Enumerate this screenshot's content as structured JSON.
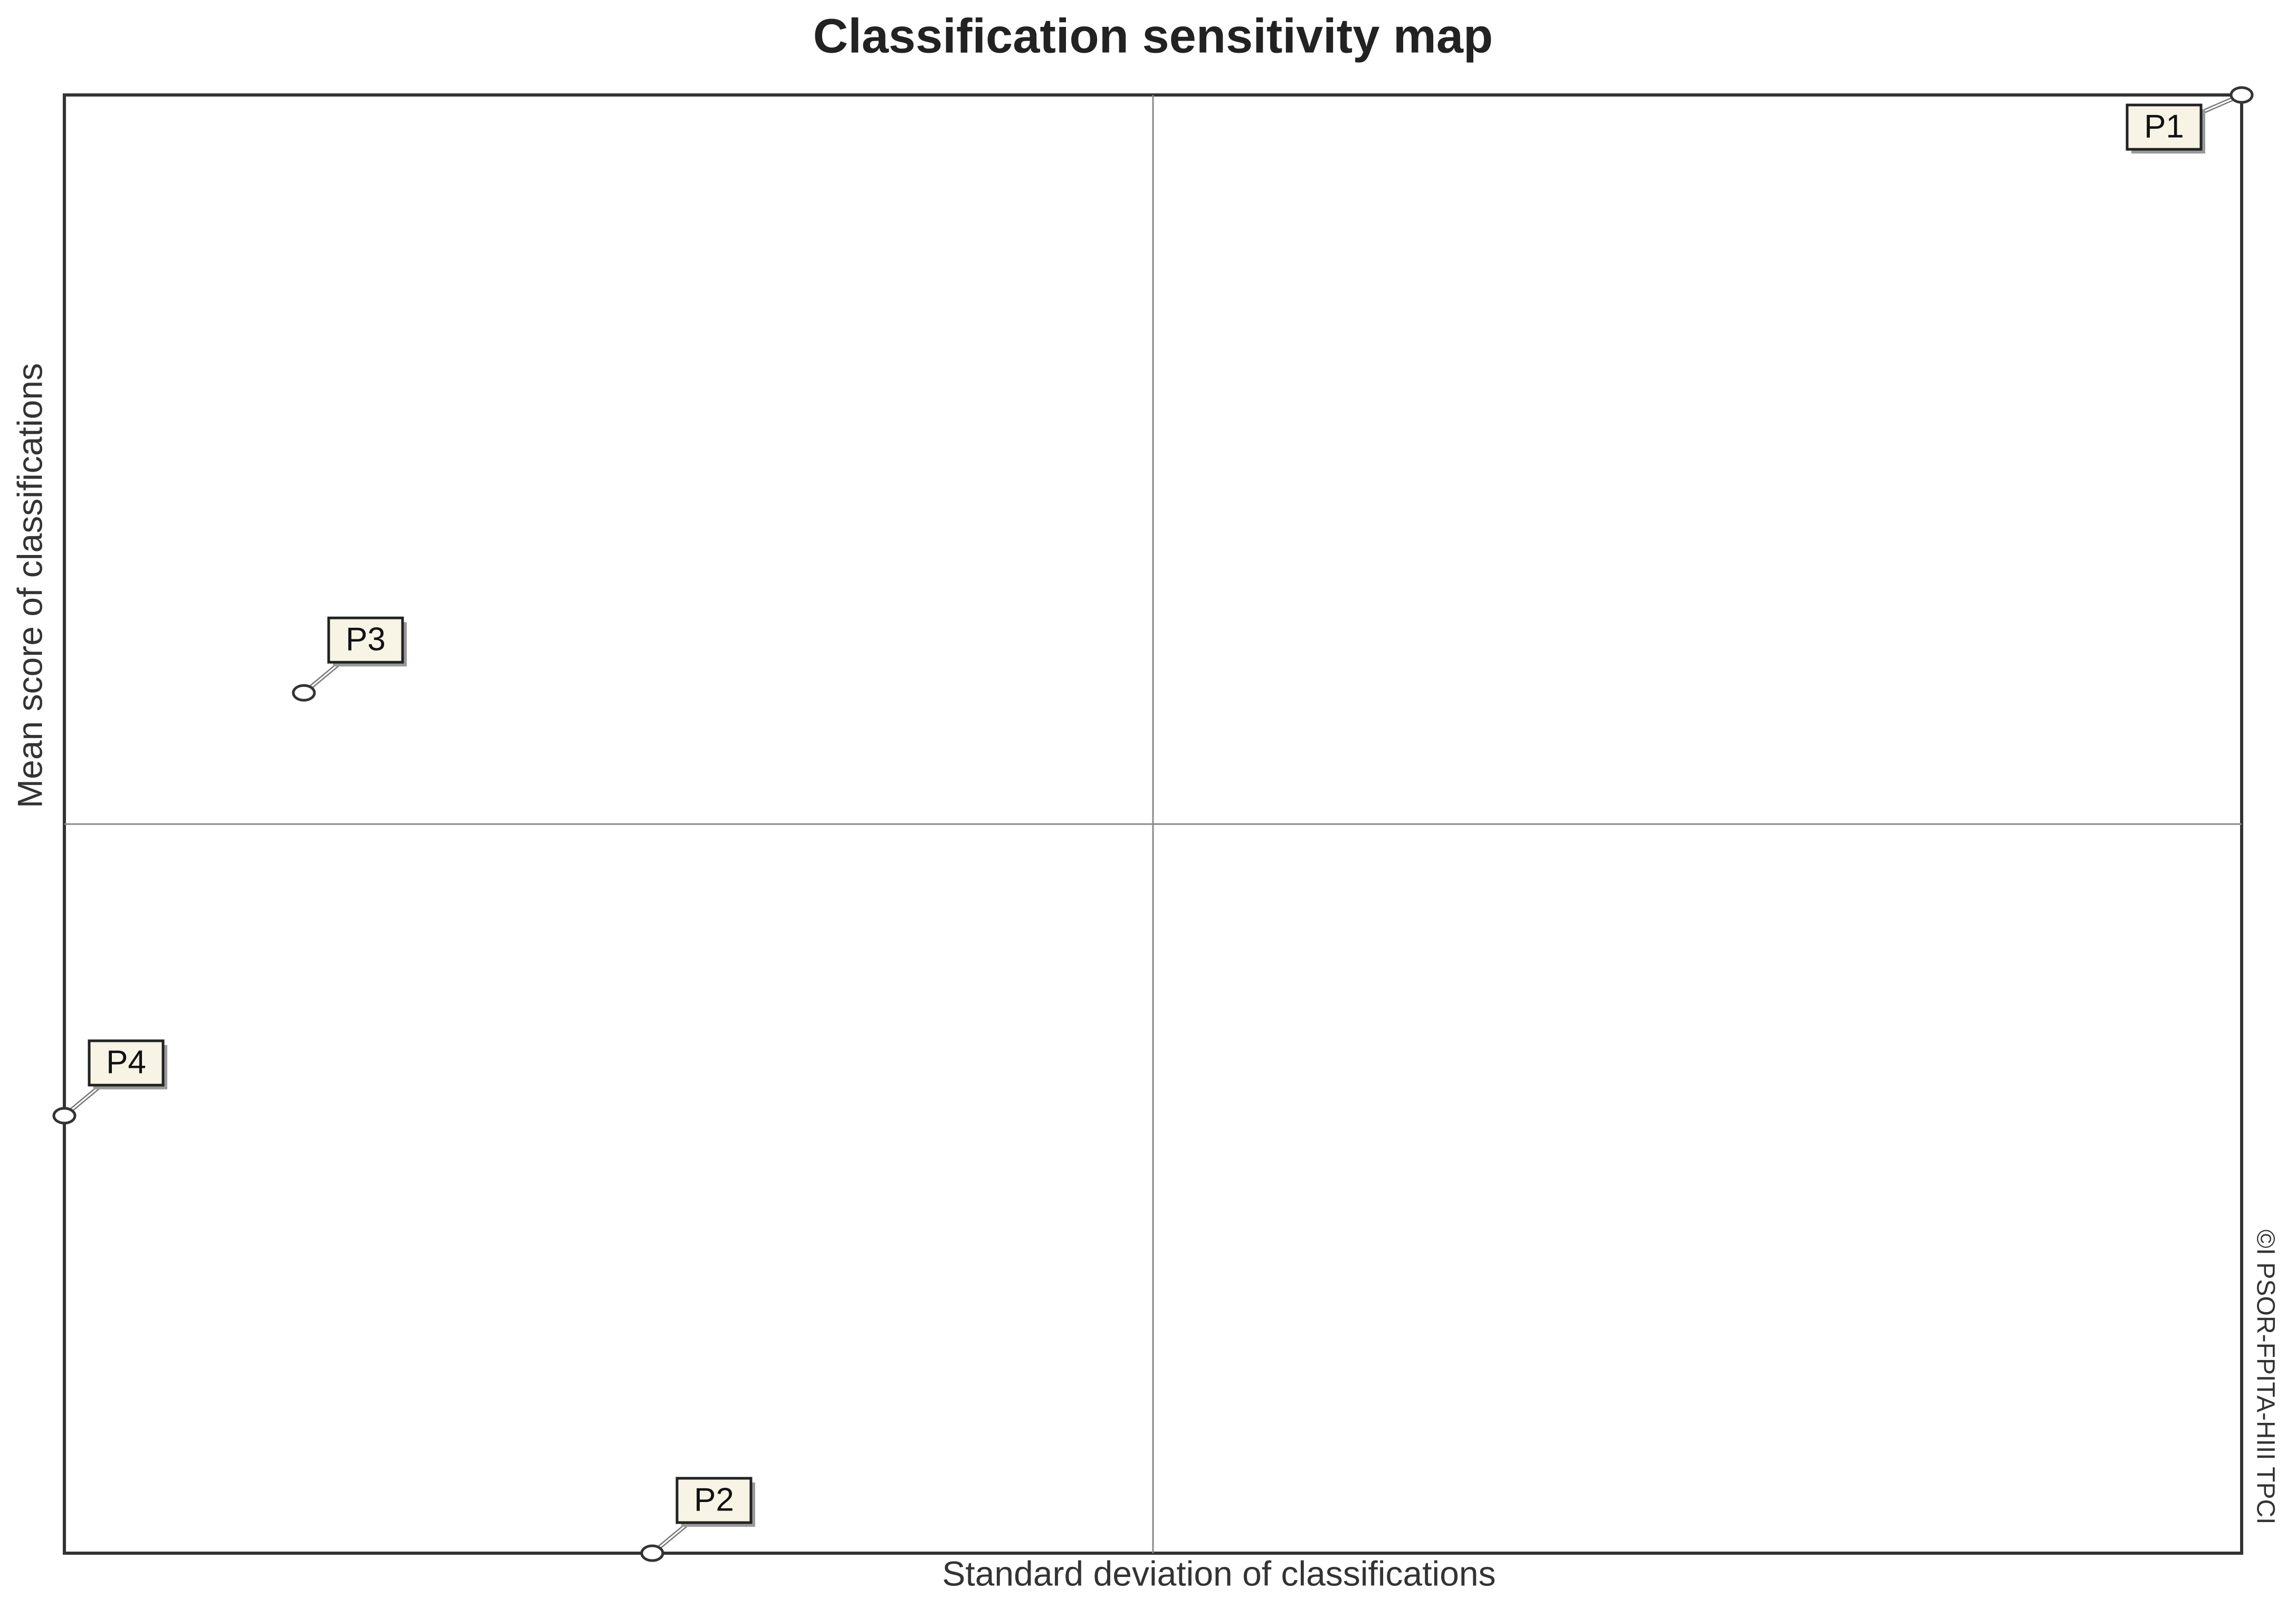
{
  "chart_data": {
    "type": "scatter",
    "title": "Classification sensitivity map",
    "x_label": "Standard deviation of classifications",
    "y_label": "Mean score of classifications",
    "watermark": "©I PSOR-FPITA-HIII TPCI",
    "point_labels": [
      "P1",
      "P2",
      "P3",
      "P4"
    ],
    "x": [
      1.0,
      0.27,
      0.11,
      0.0
    ],
    "values": [
      1.0,
      0.0,
      0.59,
      0.3
    ],
    "xlim": [
      0,
      1
    ],
    "ylim": [
      0,
      1
    ],
    "color": "#f7f4e6"
  }
}
